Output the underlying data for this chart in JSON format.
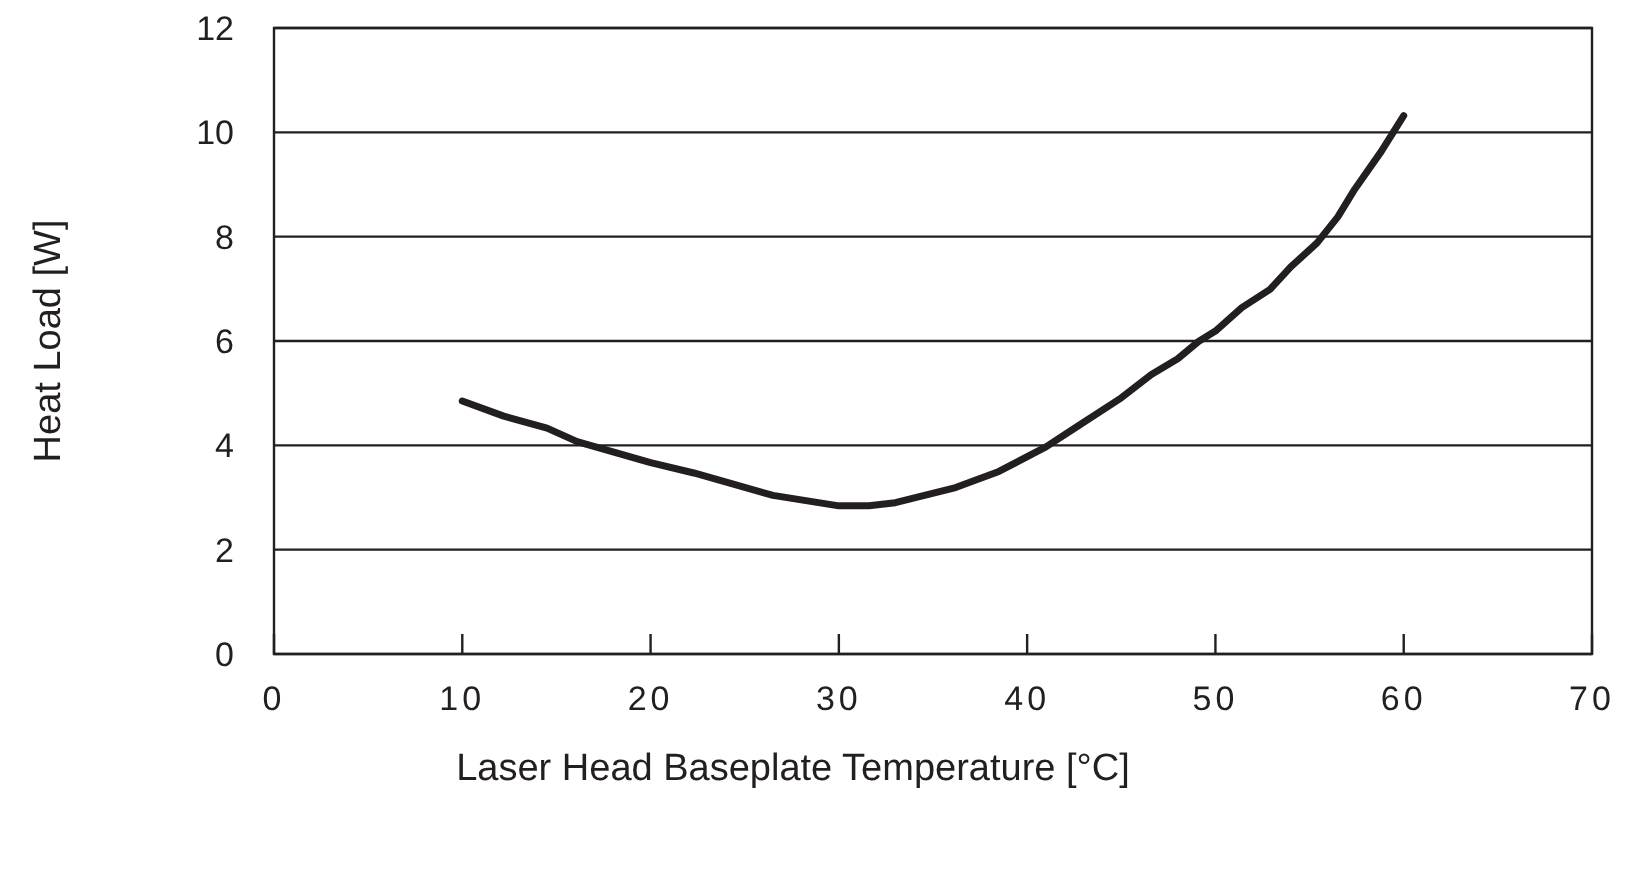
{
  "chart_data": {
    "type": "line",
    "xlabel": "Laser Head Baseplate Temperature [°C]",
    "ylabel": "Heat Load [W]",
    "xlim": [
      0,
      70
    ],
    "xticks": [
      0,
      10,
      20,
      30,
      40,
      50,
      60,
      70
    ],
    "ylim": [
      0,
      12
    ],
    "yticks": [
      0,
      2,
      4,
      6,
      8,
      10,
      12
    ],
    "grid": "y",
    "series": [
      {
        "color": "#231f20",
        "x": [
          10,
          12.2,
          14.5,
          16.1,
          20,
          22.3,
          26.5,
          30,
          31.6,
          33,
          36.2,
          38.5,
          41,
          42.7,
          45,
          46.6,
          48,
          49.1,
          50,
          51.4,
          52.9,
          54,
          55.4,
          56.5,
          57.4,
          58.8,
          60
        ],
        "values": [
          4.85,
          4.56,
          4.33,
          4.07,
          3.67,
          3.47,
          3.04,
          2.84,
          2.84,
          2.9,
          3.19,
          3.5,
          3.97,
          4.37,
          4.91,
          5.36,
          5.66,
          5.99,
          6.19,
          6.64,
          6.99,
          7.42,
          7.88,
          8.38,
          8.91,
          9.63,
          10.32
        ]
      }
    ]
  }
}
